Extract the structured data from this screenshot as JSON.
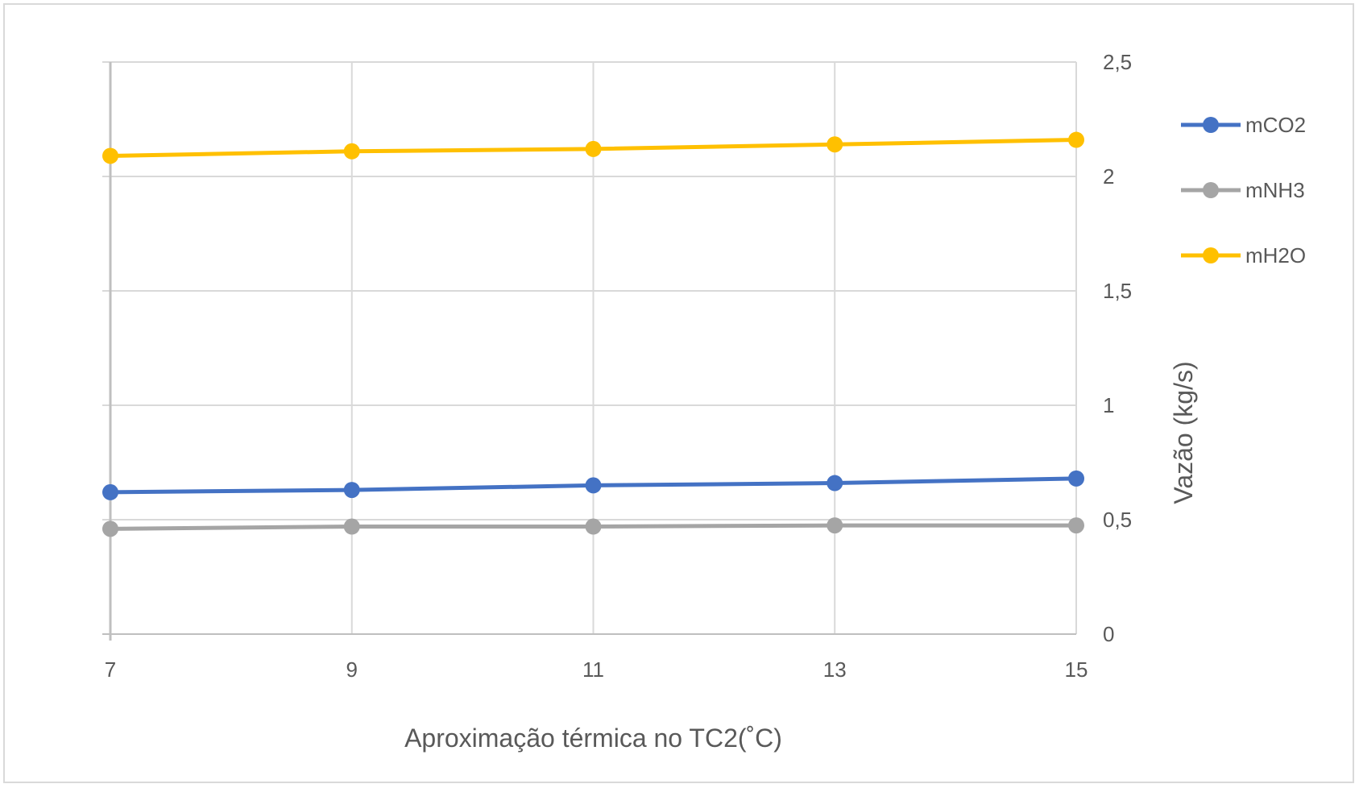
{
  "chart_data": {
    "type": "line",
    "title": "",
    "xlabel": "Aproximação térmica no TC2(˚C)",
    "ylabel": "Vazão (kg/s)",
    "x": [
      7,
      9,
      11,
      13,
      15
    ],
    "x_tick_labels": [
      "7",
      "9",
      "11",
      "13",
      "15"
    ],
    "xlim": [
      7,
      15
    ],
    "ylim": [
      0,
      2.5
    ],
    "y_ticks": [
      0,
      0.5,
      1,
      1.5,
      2,
      2.5
    ],
    "y_tick_labels": [
      "0",
      "0,5",
      "1",
      "1,5",
      "2",
      "2,5"
    ],
    "y_axis_side": "right",
    "grid": true,
    "legend_position": "right",
    "series": [
      {
        "name": "mCO2",
        "color": "#4472c4",
        "values": [
          0.62,
          0.63,
          0.65,
          0.66,
          0.68
        ]
      },
      {
        "name": "mNH3",
        "color": "#a5a5a5",
        "values": [
          0.46,
          0.47,
          0.47,
          0.475,
          0.475
        ]
      },
      {
        "name": "mH2O",
        "color": "#ffc000",
        "values": [
          2.09,
          2.11,
          2.12,
          2.14,
          2.16
        ]
      }
    ]
  }
}
